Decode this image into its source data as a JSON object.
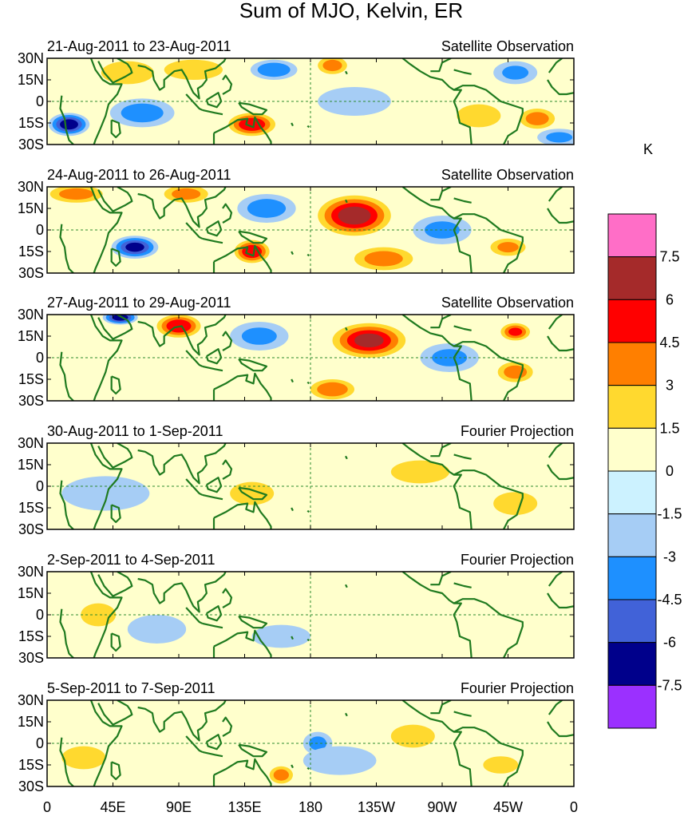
{
  "chart_data": {
    "type": "heatmap",
    "title": "Sum of MJO, Kelvin, ER",
    "colorbar": {
      "unit": "K",
      "levels": [
        "7.5",
        "6",
        "4.5",
        "3",
        "1.5",
        "0",
        "-1.5",
        "-3",
        "-4.5",
        "-6",
        "-7.5"
      ],
      "colors": [
        "#ff6ec7",
        "#a52a2a",
        "#ff0000",
        "#ff7f00",
        "#ffd92f",
        "#ffffcc",
        "#ccf2ff",
        "#a6cdf5",
        "#1e90ff",
        "#4162d8",
        "#00008b",
        "#9b30ff"
      ],
      "range": [
        -9,
        9
      ]
    },
    "x_ticks": [
      "0",
      "45E",
      "90E",
      "135E",
      "180",
      "135W",
      "90W",
      "45W",
      "0"
    ],
    "x_range_deg": [
      0,
      360
    ],
    "y_ticks": [
      "30N",
      "15N",
      "0",
      "15S",
      "30S"
    ],
    "y_range_deg": [
      -30,
      30
    ],
    "panels": [
      {
        "date": "21-Aug-2011 to 23-Aug-2011",
        "source": "Satellite Observation",
        "anomalies": [
          {
            "lon": 15,
            "lat": -16,
            "value": -6.5,
            "dlon": 14,
            "dlat": 8
          },
          {
            "lon": 55,
            "lat": 20,
            "value": 2.5,
            "dlon": 18,
            "dlat": 8
          },
          {
            "lon": 65,
            "lat": -8,
            "value": -3.5,
            "dlon": 22,
            "dlat": 10
          },
          {
            "lon": 100,
            "lat": 22,
            "value": 2.5,
            "dlon": 20,
            "dlat": 7
          },
          {
            "lon": 140,
            "lat": -16,
            "value": 5.5,
            "dlon": 16,
            "dlat": 8
          },
          {
            "lon": 155,
            "lat": 22,
            "value": -4.0,
            "dlon": 16,
            "dlat": 7
          },
          {
            "lon": 195,
            "lat": 25,
            "value": 3.5,
            "dlon": 10,
            "dlat": 6
          },
          {
            "lon": 210,
            "lat": 0,
            "value": -2.0,
            "dlon": 25,
            "dlat": 10
          },
          {
            "lon": 295,
            "lat": -10,
            "value": 2.5,
            "dlon": 15,
            "dlat": 8
          },
          {
            "lon": 320,
            "lat": 20,
            "value": -3.0,
            "dlon": 15,
            "dlat": 8
          },
          {
            "lon": 335,
            "lat": -12,
            "value": 3.5,
            "dlon": 12,
            "dlat": 7
          },
          {
            "lon": 350,
            "lat": -25,
            "value": -3.0,
            "dlon": 15,
            "dlat": 6
          }
        ]
      },
      {
        "date": "24-Aug-2011 to 26-Aug-2011",
        "source": "Satellite Observation",
        "anomalies": [
          {
            "lon": 20,
            "lat": 25,
            "value": 3.5,
            "dlon": 18,
            "dlat": 6
          },
          {
            "lon": 60,
            "lat": -12,
            "value": -6.0,
            "dlon": 16,
            "dlat": 8
          },
          {
            "lon": 95,
            "lat": 25,
            "value": 3.5,
            "dlon": 15,
            "dlat": 6
          },
          {
            "lon": 140,
            "lat": -15,
            "value": 5.5,
            "dlon": 12,
            "dlat": 8
          },
          {
            "lon": 150,
            "lat": 15,
            "value": -3.5,
            "dlon": 20,
            "dlat": 10
          },
          {
            "lon": 210,
            "lat": 10,
            "value": 6.5,
            "dlon": 25,
            "dlat": 14
          },
          {
            "lon": 230,
            "lat": -20,
            "value": 3.5,
            "dlon": 20,
            "dlat": 8
          },
          {
            "lon": 270,
            "lat": 0,
            "value": -3.0,
            "dlon": 20,
            "dlat": 10
          },
          {
            "lon": 315,
            "lat": -12,
            "value": 3.0,
            "dlon": 12,
            "dlat": 6
          }
        ]
      },
      {
        "date": "27-Aug-2011 to 29-Aug-2011",
        "source": "Satellite Observation",
        "anomalies": [
          {
            "lon": 50,
            "lat": 28,
            "value": -6.5,
            "dlon": 12,
            "dlat": 5
          },
          {
            "lon": 90,
            "lat": 22,
            "value": 5.5,
            "dlon": 15,
            "dlat": 8
          },
          {
            "lon": 145,
            "lat": 15,
            "value": -3.0,
            "dlon": 20,
            "dlat": 10
          },
          {
            "lon": 195,
            "lat": -22,
            "value": 4.0,
            "dlon": 15,
            "dlat": 7
          },
          {
            "lon": 220,
            "lat": 12,
            "value": 6.0,
            "dlon": 25,
            "dlat": 12
          },
          {
            "lon": 275,
            "lat": 0,
            "value": -3.0,
            "dlon": 20,
            "dlat": 10
          },
          {
            "lon": 320,
            "lat": 18,
            "value": 4.5,
            "dlon": 10,
            "dlat": 6
          },
          {
            "lon": 320,
            "lat": -10,
            "value": 3.5,
            "dlon": 12,
            "dlat": 7
          }
        ]
      },
      {
        "date": "30-Aug-2011 to 1-Sep-2011",
        "source": "Fourier Projection",
        "anomalies": [
          {
            "lon": 40,
            "lat": -5,
            "value": -1.5,
            "dlon": 30,
            "dlat": 12
          },
          {
            "lon": 140,
            "lat": -5,
            "value": 2.0,
            "dlon": 15,
            "dlat": 8
          },
          {
            "lon": 200,
            "lat": -10,
            "value": -1.0,
            "dlon": 30,
            "dlat": 12
          },
          {
            "lon": 255,
            "lat": 10,
            "value": 1.5,
            "dlon": 20,
            "dlat": 8
          },
          {
            "lon": 320,
            "lat": -12,
            "value": 1.5,
            "dlon": 15,
            "dlat": 8
          }
        ]
      },
      {
        "date": "2-Sep-2011 to 4-Sep-2011",
        "source": "Fourier Projection",
        "anomalies": [
          {
            "lon": 35,
            "lat": 0,
            "value": 1.5,
            "dlon": 12,
            "dlat": 8
          },
          {
            "lon": 75,
            "lat": -10,
            "value": -1.5,
            "dlon": 20,
            "dlat": 10
          },
          {
            "lon": 160,
            "lat": -15,
            "value": -1.5,
            "dlon": 20,
            "dlat": 8
          },
          {
            "lon": 200,
            "lat": 15,
            "value": -1.0,
            "dlon": 25,
            "dlat": 8
          },
          {
            "lon": 240,
            "lat": 0,
            "value": 1.0,
            "dlon": 25,
            "dlat": 10
          }
        ]
      },
      {
        "date": "5-Sep-2011 to 7-Sep-2011",
        "source": "Fourier Projection",
        "anomalies": [
          {
            "lon": 25,
            "lat": -10,
            "value": 1.5,
            "dlon": 15,
            "dlat": 8
          },
          {
            "lon": 160,
            "lat": -22,
            "value": 3.5,
            "dlon": 8,
            "dlat": 6
          },
          {
            "lon": 185,
            "lat": 0,
            "value": -3.0,
            "dlon": 10,
            "dlat": 8
          },
          {
            "lon": 200,
            "lat": -12,
            "value": -1.5,
            "dlon": 25,
            "dlat": 10
          },
          {
            "lon": 250,
            "lat": 5,
            "value": 1.5,
            "dlon": 15,
            "dlat": 8
          },
          {
            "lon": 310,
            "lat": -15,
            "value": 1.5,
            "dlon": 12,
            "dlat": 6
          }
        ]
      }
    ]
  }
}
